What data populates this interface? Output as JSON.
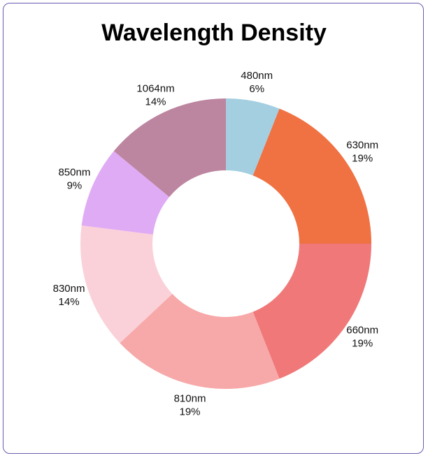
{
  "chart_data": {
    "type": "pie",
    "donut": true,
    "title": "Wavelength Density",
    "categories": [
      "480nm",
      "630nm",
      "660nm",
      "810nm",
      "830nm",
      "850nm",
      "1064nm"
    ],
    "values": [
      6,
      19,
      19,
      19,
      14,
      9,
      14
    ],
    "labels": [
      "6%",
      "19%",
      "19%",
      "19%",
      "14%",
      "9%",
      "14%"
    ],
    "colors": [
      "#a3cfe1",
      "#f07142",
      "#f07878",
      "#f7a8a8",
      "#fad1d9",
      "#dfabf5",
      "#bc85a0"
    ],
    "legend": "none"
  }
}
